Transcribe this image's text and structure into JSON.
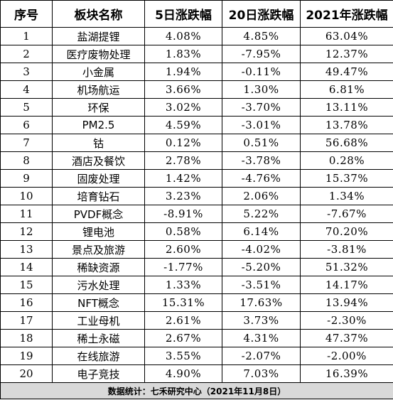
{
  "table": {
    "headers": [
      "序号",
      "板块名称",
      "5日涨跌幅",
      "20日涨跌幅",
      "2021年涨跌幅"
    ],
    "rows": [
      [
        "1",
        "盐湖提锂",
        "4.08%",
        "4.85%",
        "63.04%"
      ],
      [
        "2",
        "医疗废物处理",
        "1.83%",
        "-7.95%",
        "12.37%"
      ],
      [
        "3",
        "小金属",
        "1.94%",
        "-0.11%",
        "49.47%"
      ],
      [
        "4",
        "机场航运",
        "3.66%",
        "1.30%",
        "6.81%"
      ],
      [
        "5",
        "环保",
        "3.02%",
        "-3.70%",
        "13.11%"
      ],
      [
        "6",
        "PM2.5",
        "4.59%",
        "-3.01%",
        "13.78%"
      ],
      [
        "7",
        "钴",
        "0.12%",
        "0.51%",
        "56.68%"
      ],
      [
        "8",
        "酒店及餐饮",
        "2.78%",
        "-3.78%",
        "0.28%"
      ],
      [
        "9",
        "固废处理",
        "1.42%",
        "-4.76%",
        "15.37%"
      ],
      [
        "10",
        "培育钻石",
        "3.23%",
        "2.06%",
        "1.34%"
      ],
      [
        "11",
        "PVDF概念",
        "-8.91%",
        "5.22%",
        "-7.67%"
      ],
      [
        "12",
        "锂电池",
        "0.58%",
        "6.14%",
        "70.20%"
      ],
      [
        "13",
        "景点及旅游",
        "2.60%",
        "-4.02%",
        "-3.81%"
      ],
      [
        "14",
        "稀缺资源",
        "-1.77%",
        "-5.20%",
        "51.32%"
      ],
      [
        "15",
        "污水处理",
        "1.33%",
        "-3.51%",
        "14.17%"
      ],
      [
        "16",
        "NFT概念",
        "15.31%",
        "17.63%",
        "13.94%"
      ],
      [
        "17",
        "工业母机",
        "2.61%",
        "3.73%",
        "-2.30%"
      ],
      [
        "18",
        "稀土永磁",
        "2.67%",
        "4.31%",
        "47.37%"
      ],
      [
        "19",
        "在线旅游",
        "3.55%",
        "-2.07%",
        "-2.00%"
      ],
      [
        "20",
        "电子竞技",
        "4.90%",
        "7.03%",
        "16.39%"
      ]
    ],
    "footer": "数据统计：七禾研究中心（2021年11月8日）"
  }
}
